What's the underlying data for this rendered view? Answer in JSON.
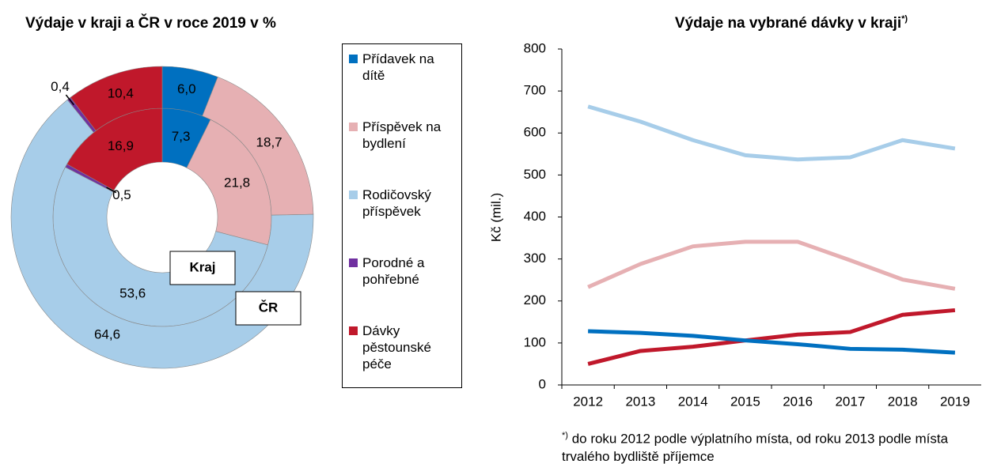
{
  "chart_data": [
    {
      "type": "pie",
      "title": "Výdaje v kraji a ČR v roce 2019 v %",
      "categories": [
        "Přídavek na dítě",
        "Příspěvek na bydlení",
        "Rodičovský příspěvek",
        "Porodné a pohřebné",
        "Dávky pěstounské péče"
      ],
      "colors": [
        "#0070c0",
        "#e6b0b3",
        "#a7cde9",
        "#7030a0",
        "#c0182b"
      ],
      "rings": [
        {
          "name": "Kraj",
          "values": [
            7.3,
            21.8,
            53.6,
            0.5,
            16.9
          ],
          "value_labels": [
            "7,3",
            "21,8",
            "53,6",
            "0,5",
            "16,9"
          ]
        },
        {
          "name": "ČR",
          "values": [
            6.0,
            18.7,
            64.6,
            0.4,
            10.4
          ],
          "value_labels": [
            "6,0",
            "18,7",
            "64,6",
            "0,4",
            "10,4"
          ]
        }
      ]
    },
    {
      "type": "line",
      "title": "Výdaje na vybrané dávky v kraji",
      "footnote_mark": "*)",
      "footnote": "do roku 2012 podle výplatního místa, od roku 2013 podle místa trvalého bydliště příjemce",
      "ylabel": "Kč (mil.)",
      "categories": [
        "2012",
        "2013",
        "2014",
        "2015",
        "2016",
        "2017",
        "2018",
        "2019"
      ],
      "ylim": [
        0,
        800
      ],
      "yticks": [
        0,
        100,
        200,
        300,
        400,
        500,
        600,
        700,
        800
      ],
      "series": [
        {
          "color": "#a7cde9",
          "values": [
            663,
            627,
            583,
            547,
            537,
            542,
            583,
            563
          ]
        },
        {
          "color": "#e6b0b3",
          "values": [
            233,
            288,
            330,
            341,
            341,
            297,
            251,
            229
          ]
        },
        {
          "color": "#c0182b",
          "values": [
            50,
            81,
            91,
            106,
            120,
            126,
            167,
            178
          ]
        },
        {
          "color": "#0070c0",
          "values": [
            128,
            124,
            117,
            106,
            97,
            86,
            84,
            77
          ]
        }
      ]
    }
  ]
}
